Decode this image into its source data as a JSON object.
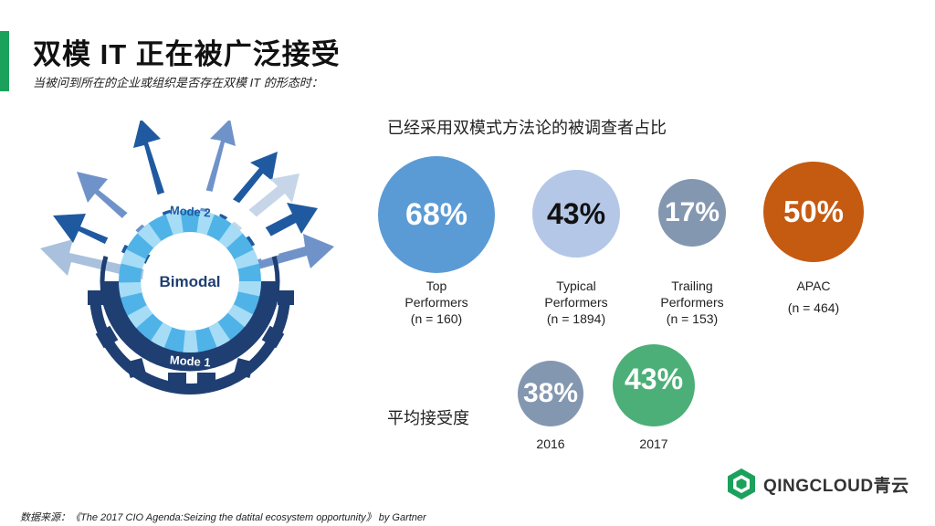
{
  "header": {
    "title": "双模 IT 正在被广泛接受",
    "subtitle": "当被问到所在的企业或组织是否存在双模 IT 的形态时："
  },
  "graphic": {
    "center_label": "Bimodal",
    "ring_top_label": "Mode 2",
    "ring_bottom_label": "Mode 1"
  },
  "adoption": {
    "heading": "已经采用双模式方法论的被调查者占比",
    "items": [
      {
        "value": "68%",
        "line1": "Top",
        "line2": "Performers",
        "line3": "(n = 160)",
        "color": "#5b9bd5",
        "text_color": "#ffffff"
      },
      {
        "value": "43%",
        "line1": "Typical",
        "line2": "Performers",
        "line3": "(n = 1894)",
        "color": "#b4c7e7",
        "text_color": "#111111"
      },
      {
        "value": "17%",
        "line1": "Trailing",
        "line2": "Performers",
        "line3": "(n = 153)",
        "color": "#8497b0",
        "text_color": "#ffffff"
      },
      {
        "value": "50%",
        "line1": "APAC",
        "line2": "",
        "line3": "(n = 464)",
        "color": "#c55a11",
        "text_color": "#ffffff"
      }
    ]
  },
  "average": {
    "label": "平均接受度",
    "items": [
      {
        "value": "38%",
        "year": "2016",
        "color": "#8497b0"
      },
      {
        "value": "43%",
        "year": "2017",
        "color": "#4caf78"
      }
    ]
  },
  "logo": {
    "text": "QINGCLOUD青云"
  },
  "footer": {
    "source": "数据来源：《The 2017 CIO Agenda:Seizing the datital ecosystem opportunity》 by Gartner"
  }
}
